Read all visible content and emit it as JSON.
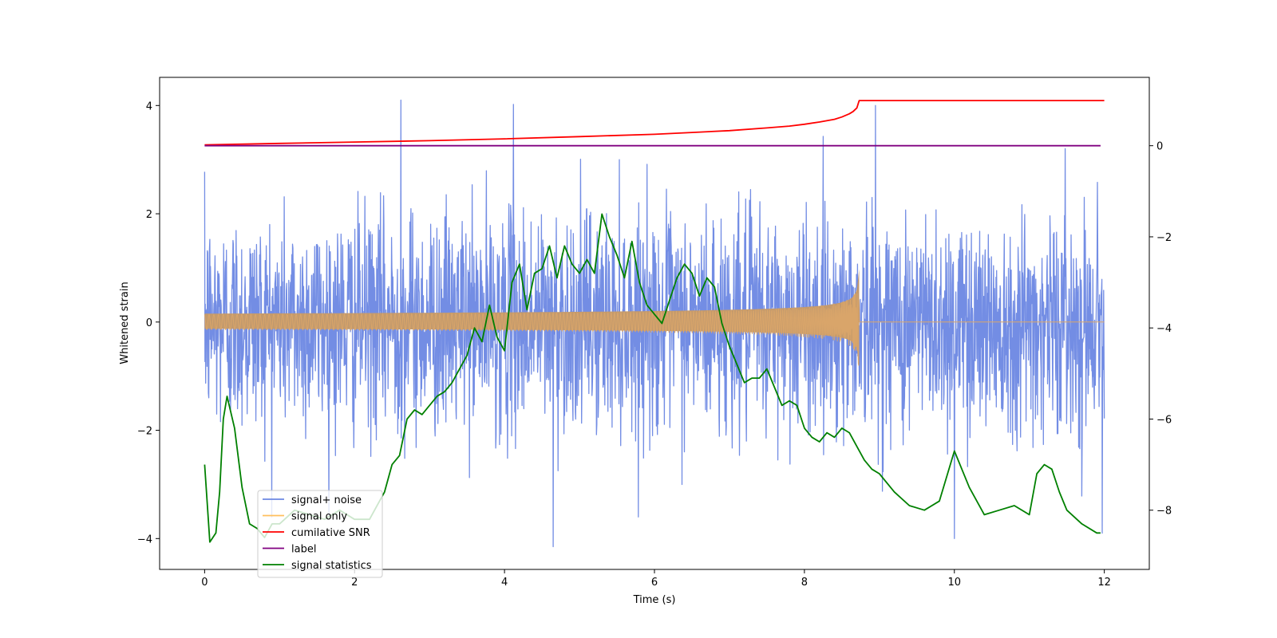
{
  "chart_data": {
    "type": "line",
    "title": "",
    "xlabel": "Time (s)",
    "ylabel": "Whitened strain",
    "y2label": "",
    "xlim": [
      -0.6,
      12.6
    ],
    "ylim": [
      -4.57,
      4.52
    ],
    "y2lim": [
      -9.3,
      1.5
    ],
    "x_ticks": [
      0,
      2,
      4,
      6,
      8,
      10,
      12
    ],
    "x_tick_labels": [
      "0",
      "2",
      "4",
      "6",
      "8",
      "10",
      "12"
    ],
    "y_ticks": [
      -4,
      -2,
      0,
      2,
      4
    ],
    "y_tick_labels": [
      "−4",
      "−2",
      "0",
      "2",
      "4"
    ],
    "y2_ticks": [
      -8,
      -6,
      -4,
      -2,
      0
    ],
    "y2_tick_labels": [
      "−8",
      "−6",
      "−4",
      "−2",
      "0"
    ],
    "grid": false,
    "legend_position": "lower-left",
    "series": [
      {
        "name": "signal+ noise",
        "color": "#6b87e3",
        "axis": "left",
        "kind": "noise",
        "x_range": [
          0,
          12
        ],
        "std": 1.0,
        "peaks": [
          [
            2.62,
            4.1
          ],
          [
            4.12,
            4.02
          ],
          [
            8.95,
            4.0
          ],
          [
            4.65,
            -4.15
          ],
          [
            10.0,
            -4.0
          ],
          [
            11.97,
            -3.9
          ]
        ]
      },
      {
        "name": "signal only",
        "color": "#ffbf5e",
        "axis": "left",
        "kind": "chirp",
        "x_range": [
          0,
          12
        ],
        "merger_time": 8.73,
        "peak_amplitude": 1.07
      },
      {
        "name": "cumilative SNR",
        "color": "#ff0000",
        "axis": "right",
        "x": [
          0,
          1,
          2,
          3,
          4,
          5,
          6,
          6.5,
          7,
          7.5,
          7.8,
          8.0,
          8.2,
          8.4,
          8.5,
          8.6,
          8.65,
          8.7,
          8.73,
          9.0,
          10.0,
          11.0,
          12.0
        ],
        "y": [
          0.02,
          0.05,
          0.08,
          0.11,
          0.15,
          0.2,
          0.25,
          0.29,
          0.33,
          0.39,
          0.43,
          0.47,
          0.52,
          0.58,
          0.63,
          0.7,
          0.75,
          0.83,
          0.99,
          0.99,
          0.99,
          0.99,
          0.99
        ]
      },
      {
        "name": "label",
        "color": "#800080",
        "axis": "right",
        "x": [
          0,
          11.95
        ],
        "y": [
          0,
          0
        ]
      },
      {
        "name": "signal statistics",
        "color": "#008000",
        "axis": "right",
        "x": [
          0,
          0.07,
          0.15,
          0.2,
          0.25,
          0.3,
          0.4,
          0.5,
          0.6,
          0.7,
          0.8,
          0.9,
          1.0,
          1.2,
          1.4,
          1.6,
          1.8,
          2.0,
          2.2,
          2.4,
          2.5,
          2.6,
          2.7,
          2.8,
          2.9,
          3.0,
          3.1,
          3.2,
          3.3,
          3.4,
          3.5,
          3.6,
          3.7,
          3.8,
          3.9,
          4.0,
          4.1,
          4.2,
          4.3,
          4.4,
          4.5,
          4.6,
          4.7,
          4.8,
          4.9,
          5.0,
          5.1,
          5.2,
          5.3,
          5.4,
          5.5,
          5.6,
          5.7,
          5.8,
          5.9,
          6.0,
          6.1,
          6.2,
          6.3,
          6.4,
          6.5,
          6.6,
          6.7,
          6.8,
          6.9,
          7.0,
          7.1,
          7.2,
          7.3,
          7.4,
          7.5,
          7.6,
          7.7,
          7.8,
          7.9,
          8.0,
          8.1,
          8.2,
          8.3,
          8.4,
          8.5,
          8.6,
          8.7,
          8.8,
          8.9,
          9.0,
          9.2,
          9.4,
          9.6,
          9.8,
          10.0,
          10.2,
          10.4,
          10.6,
          10.8,
          11.0,
          11.1,
          11.2,
          11.3,
          11.4,
          11.5,
          11.7,
          11.9,
          11.95
        ],
        "y": [
          -7.0,
          -8.7,
          -8.5,
          -7.6,
          -6.0,
          -5.5,
          -6.2,
          -7.5,
          -8.3,
          -8.4,
          -8.6,
          -8.3,
          -8.3,
          -8.0,
          -8.1,
          -8.2,
          -8.0,
          -8.2,
          -8.2,
          -7.6,
          -7.0,
          -6.8,
          -6.0,
          -5.8,
          -5.9,
          -5.7,
          -5.5,
          -5.4,
          -5.2,
          -4.9,
          -4.6,
          -4.0,
          -4.3,
          -3.5,
          -4.2,
          -4.5,
          -3.0,
          -2.6,
          -3.6,
          -2.8,
          -2.7,
          -2.2,
          -2.9,
          -2.2,
          -2.6,
          -2.8,
          -2.5,
          -2.8,
          -1.5,
          -2.0,
          -2.4,
          -2.9,
          -2.1,
          -3.0,
          -3.5,
          -3.7,
          -3.9,
          -3.4,
          -2.9,
          -2.6,
          -2.8,
          -3.3,
          -2.9,
          -3.1,
          -3.9,
          -4.4,
          -4.8,
          -5.2,
          -5.1,
          -5.1,
          -4.9,
          -5.3,
          -5.7,
          -5.6,
          -5.7,
          -6.2,
          -6.4,
          -6.5,
          -6.3,
          -6.4,
          -6.2,
          -6.3,
          -6.6,
          -6.9,
          -7.1,
          -7.2,
          -7.6,
          -7.9,
          -8.0,
          -7.8,
          -6.7,
          -7.5,
          -8.1,
          -8.0,
          -7.9,
          -8.1,
          -7.2,
          -7.0,
          -7.1,
          -7.6,
          -8.0,
          -8.3,
          -8.5,
          -8.5
        ]
      }
    ]
  }
}
